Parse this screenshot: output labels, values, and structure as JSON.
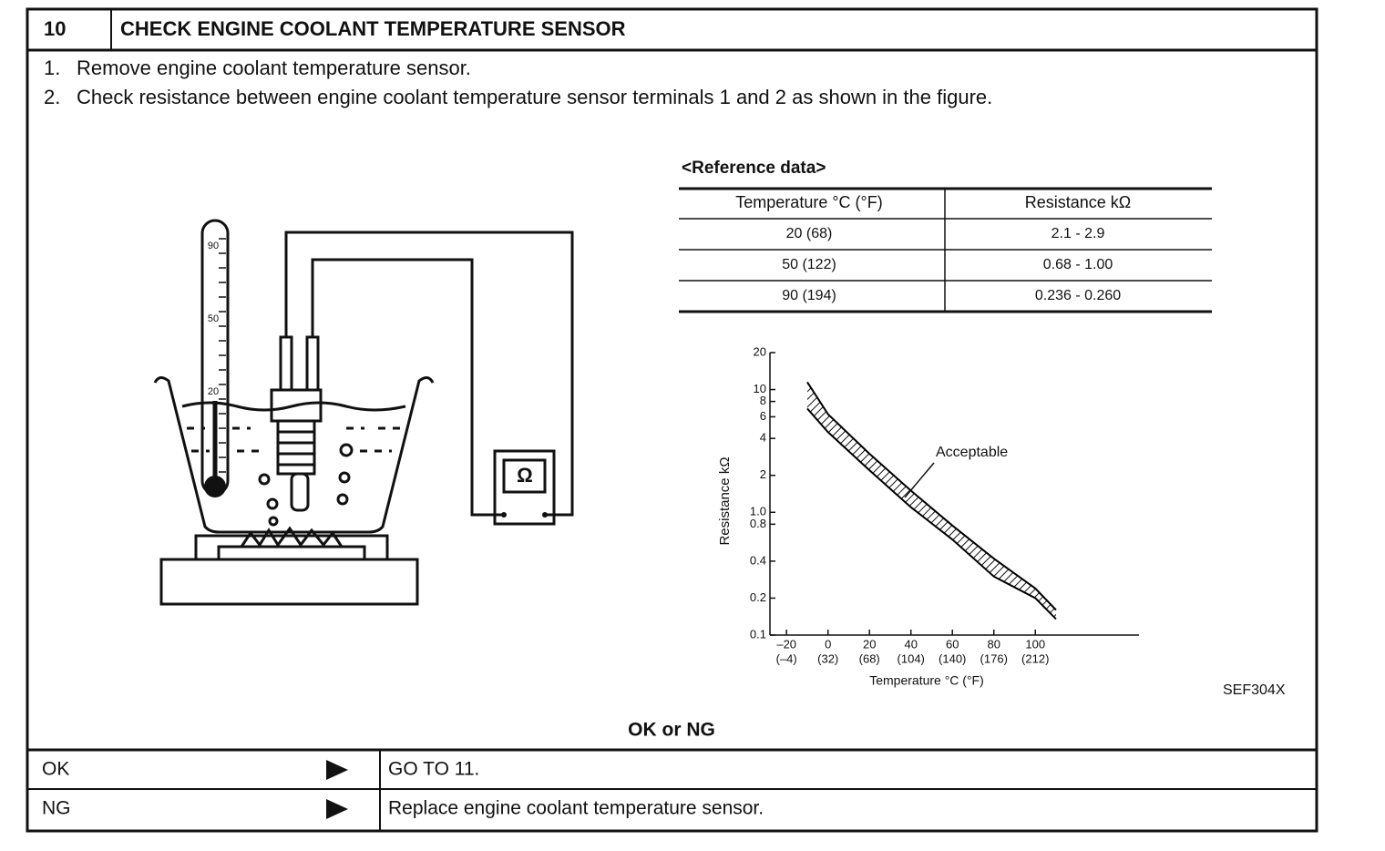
{
  "header": {
    "step": "10",
    "title": "CHECK ENGINE COOLANT TEMPERATURE SENSOR"
  },
  "steps": [
    {
      "number": "1.",
      "text": "Remove engine coolant temperature sensor."
    },
    {
      "number": "2.",
      "text": "Check resistance between engine coolant temperature sensor terminals 1 and 2 as shown in the figure."
    }
  ],
  "illustration": {
    "thermometer_marks": [
      "90",
      "50",
      "20"
    ],
    "meter_symbol": "Ω"
  },
  "reference": {
    "title": "<Reference data>",
    "columns": [
      "Temperature °C (°F)",
      "Resistance kΩ"
    ],
    "rows": [
      [
        "20 (68)",
        "2.1 - 2.9"
      ],
      [
        "50 (122)",
        "0.68 - 1.00"
      ],
      [
        "90 (194)",
        "0.236 - 0.260"
      ]
    ]
  },
  "chart_data": {
    "type": "area",
    "xlabel": "Temperature °C (°F)",
    "ylabel": "Resistance kΩ",
    "annotation": "Acceptable",
    "x": [
      -10,
      0,
      20,
      40,
      60,
      80,
      100,
      110
    ],
    "series": [
      {
        "color": "#000000",
        "values": [
          7.0,
          4.5,
          2.2,
          1.1,
          0.6,
          0.3,
          0.2,
          0.135
        ]
      },
      {
        "color": "#000000",
        "values": [
          11.5,
          6.3,
          3.0,
          1.5,
          0.78,
          0.42,
          0.24,
          0.16
        ]
      }
    ],
    "xlim": [
      -28,
      150
    ],
    "xticks": [
      {
        "value": -20,
        "label": "–20"
      },
      0,
      20,
      40,
      60,
      80,
      100
    ],
    "xtick_sublabels": [
      "(–4)",
      "(32)",
      "(68)",
      "(104)",
      "(140)",
      "(176)",
      "(212)"
    ],
    "ylim": [
      0.1,
      20
    ],
    "yscale": "log",
    "yticks": [
      0.1,
      0.2,
      0.4,
      0.8,
      {
        "value": 1,
        "label": "1.0"
      },
      2,
      4,
      6,
      8,
      10,
      20
    ]
  },
  "figure_code": "SEF304X",
  "decision": {
    "title": "OK or NG",
    "rows": [
      {
        "result": "OK",
        "action": "GO TO 11."
      },
      {
        "result": "NG",
        "action": "Replace engine coolant temperature sensor."
      }
    ]
  }
}
